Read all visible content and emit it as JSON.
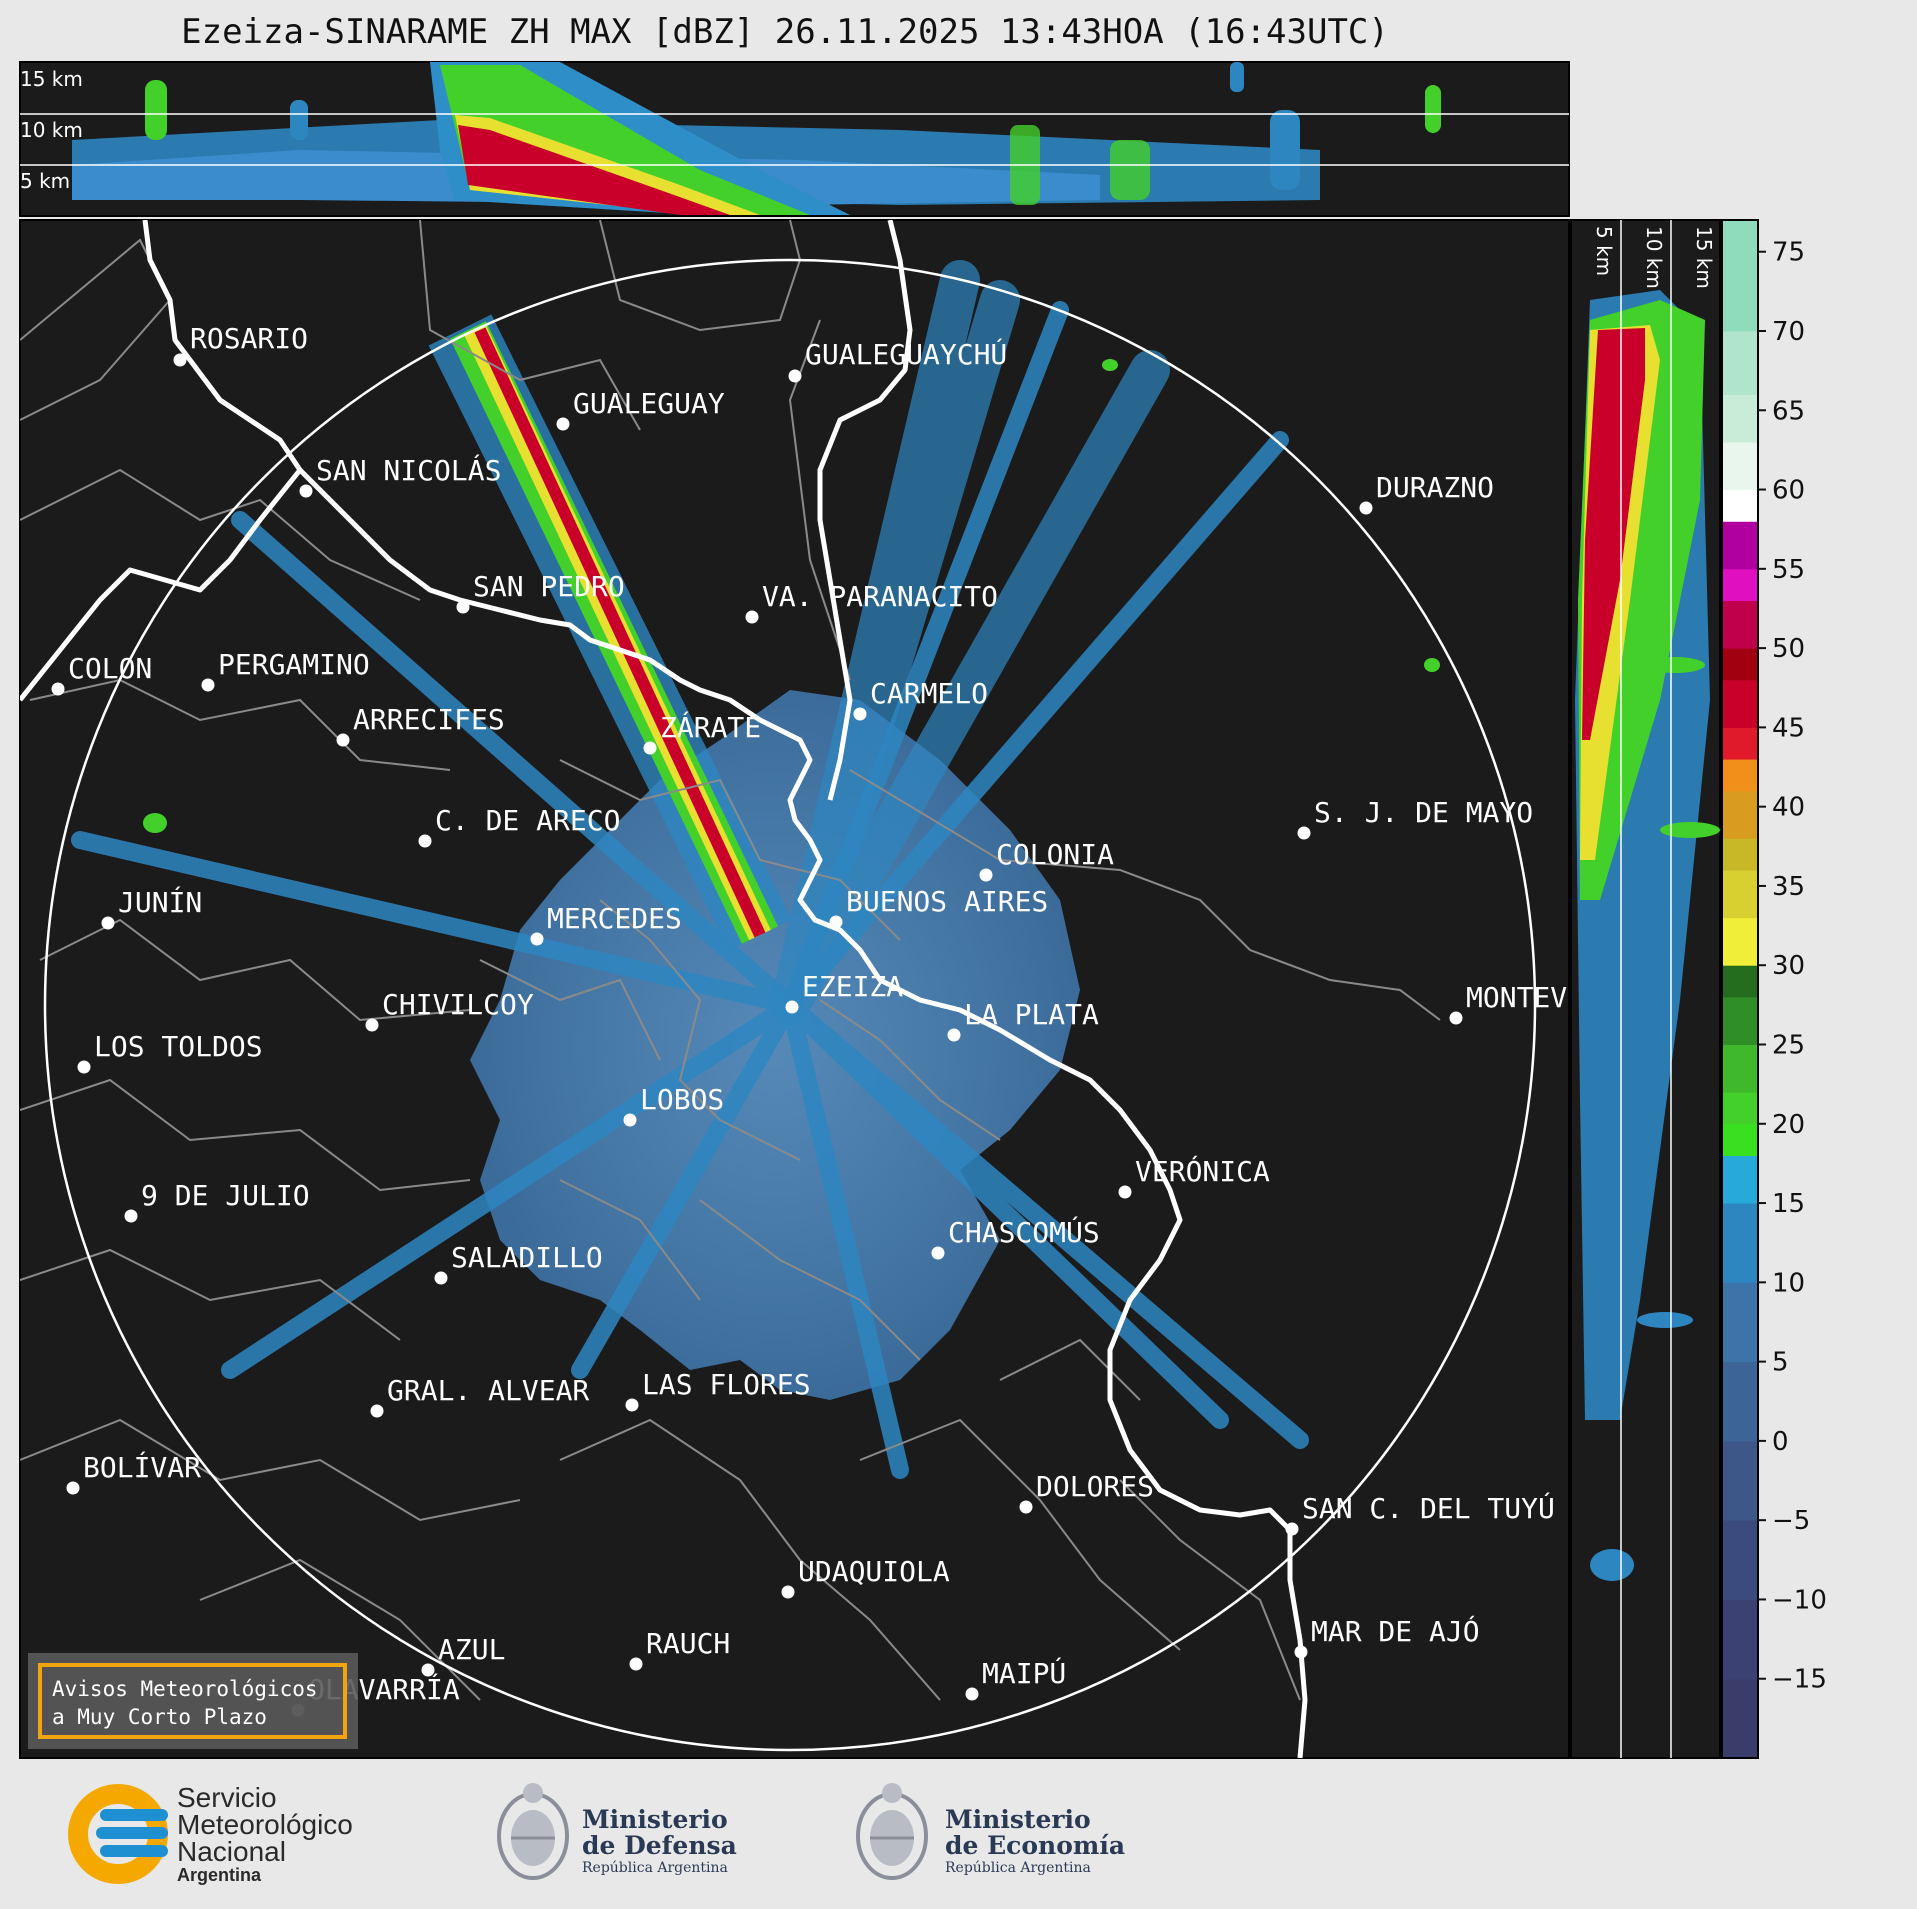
{
  "title": "Ezeiza-SINARAME ZH MAX [dBZ] 26.11.2025 13:43HOA (16:43UTC)",
  "top_profile_labels": [
    "15 km",
    "10 km",
    "5 km"
  ],
  "side_profile_labels": [
    "5 km",
    "10 km",
    "15 km"
  ],
  "cities": [
    {
      "name": "ROSARIO"
    },
    {
      "name": "GUALEGUAYCHÚ"
    },
    {
      "name": "GUALEGUAY"
    },
    {
      "name": "SAN NICOLÁS"
    },
    {
      "name": "DURAZNO"
    },
    {
      "name": "SAN PEDRO"
    },
    {
      "name": "VA. PARANACITO"
    },
    {
      "name": "COLON"
    },
    {
      "name": "PERGAMINO"
    },
    {
      "name": "CARMELO"
    },
    {
      "name": "ARRECIFES"
    },
    {
      "name": "ZÁRATE"
    },
    {
      "name": "S. J. DE MAYO"
    },
    {
      "name": "C. DE ARECO"
    },
    {
      "name": "COLONIA"
    },
    {
      "name": "JUNÍN"
    },
    {
      "name": "BUENOS AIRES"
    },
    {
      "name": "MERCEDES"
    },
    {
      "name": "EZEIZA"
    },
    {
      "name": "MONTEV"
    },
    {
      "name": "CHIVILCOY"
    },
    {
      "name": "LA PLATA"
    },
    {
      "name": "LOS TOLDOS"
    },
    {
      "name": "LOBOS"
    },
    {
      "name": "VERÓNICA"
    },
    {
      "name": "9 DE JULIO"
    },
    {
      "name": "CHASCOMÚS"
    },
    {
      "name": "SALADILLO"
    },
    {
      "name": "GRAL. ALVEAR"
    },
    {
      "name": "LAS FLORES"
    },
    {
      "name": "BOLÍVAR"
    },
    {
      "name": "DOLORES"
    },
    {
      "name": "SAN C. DEL TUYÚ"
    },
    {
      "name": "UDAQUIOLA"
    },
    {
      "name": "AZUL"
    },
    {
      "name": "RAUCH"
    },
    {
      "name": "MAR DE AJÓ"
    },
    {
      "name": "MAIPÚ"
    },
    {
      "name": "OLAVARRÍA"
    }
  ],
  "colorbar": {
    "ticks": [
      "75",
      "70",
      "65",
      "60",
      "55",
      "50",
      "45",
      "40",
      "35",
      "30",
      "25",
      "20",
      "15",
      "10",
      "5",
      "0",
      "−5",
      "−10",
      "−15"
    ],
    "range_dbz": [
      -20,
      77
    ]
  },
  "warning_box": {
    "line1": "Avisos Meteorológicos",
    "line2": "a Muy Corto Plazo"
  },
  "logos": {
    "smn": {
      "line1": "Servicio",
      "line2": "Meteorológico",
      "line3": "Nacional",
      "line4": "Argentina"
    },
    "defensa": {
      "line1": "Ministerio",
      "line2": "de Defensa",
      "line3": "República Argentina"
    },
    "economia": {
      "line1": "Ministerio",
      "line2": "de Economía",
      "line3": "República Argentina"
    }
  },
  "colors": {
    "panel_bg": "#1b1b1b",
    "echo_light": "#2e86c1",
    "echo_base": "#3d6fa0",
    "echo_mid": "#4a7fb0",
    "echo_green": "#44d02a",
    "echo_yellow": "#e8e030",
    "echo_red": "#c8002a",
    "accent_orange": "#f2a40c",
    "smn_blue": "#1e8fd0",
    "smn_yellow": "#f5a800"
  }
}
